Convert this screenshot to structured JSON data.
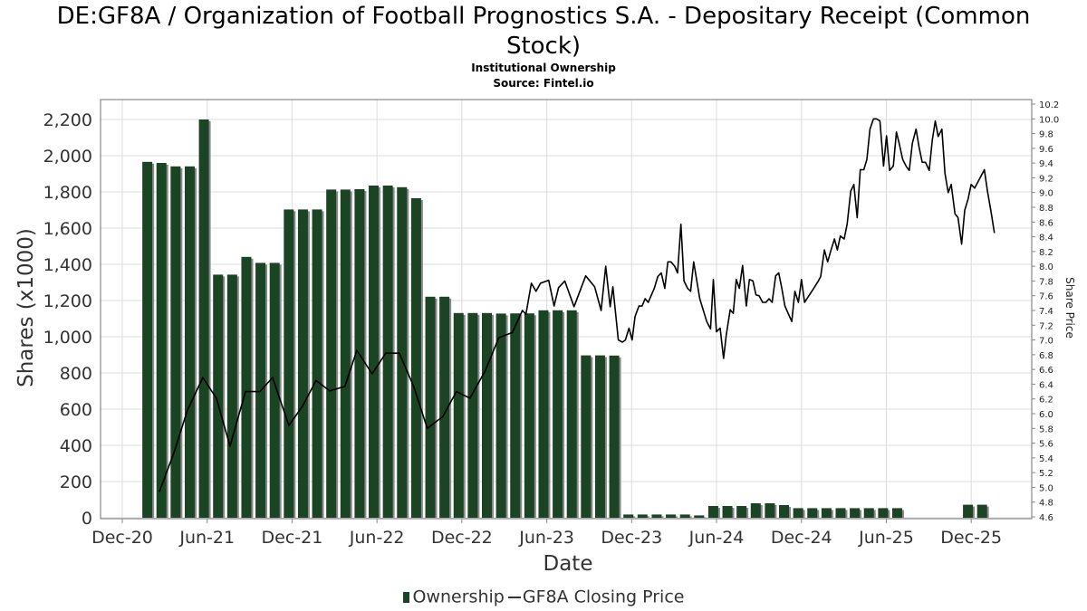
{
  "title_line1": "DE:GF8A / Organization of Football Prognostics S.A. - Depositary Receipt (Common",
  "title_line2": "Stock)",
  "subtitle": "Institutional Ownership",
  "source": "Source: Fintel.io",
  "chart_data": {
    "type": "bar+line",
    "title": "DE:GF8A / Organization of Football Prognostics S.A. - Depositary Receipt (Common Stock)",
    "xlabel": "Date",
    "ylabel": "Shares (x1000)",
    "y2label": "Share Price",
    "ylim": [
      0,
      2310
    ],
    "y2lim": [
      4.6,
      10.2
    ],
    "x_ticks": [
      "Dec-20",
      "Jun-21",
      "Dec-21",
      "Jun-22",
      "Dec-22",
      "Jun-23",
      "Dec-23",
      "Jun-24",
      "Dec-24",
      "Jun-25",
      "Dec-25"
    ],
    "y_ticks": [
      "0",
      "200",
      "400",
      "600",
      "800",
      "1,000",
      "1,200",
      "1,400",
      "1,600",
      "1,800",
      "2,000",
      "2,200"
    ],
    "y2_ticks": [
      "4.6",
      "4.8",
      "5.0",
      "5.2",
      "5.4",
      "5.6",
      "5.8",
      "6.0",
      "6.2",
      "6.4",
      "6.6",
      "6.8",
      "7.0",
      "7.2",
      "7.4",
      "7.6",
      "7.8",
      "8.0",
      "8.2",
      "8.4",
      "8.6",
      "8.8",
      "9.0",
      "9.2",
      "9.4",
      "9.6",
      "9.8",
      "10.0",
      "10.2"
    ],
    "grid": true,
    "legend_position": "bottom",
    "legend": [
      "Ownership",
      "GF8A Closing Price"
    ],
    "colors": {
      "bar": "#1a4424",
      "shadow": "#8a8a8a",
      "line": "#000000",
      "grid": "#dddddd"
    },
    "ownership": [
      [
        "2021-02",
        1966
      ],
      [
        "2021-03",
        1960
      ],
      [
        "2021-04",
        1941
      ],
      [
        "2021-05",
        1941
      ],
      [
        "2021-06",
        2200
      ],
      [
        "2021-07",
        1343
      ],
      [
        "2021-08",
        1343
      ],
      [
        "2021-09",
        1441
      ],
      [
        "2021-10",
        1408
      ],
      [
        "2021-11",
        1408
      ],
      [
        "2021-12",
        1703
      ],
      [
        "2022-01",
        1703
      ],
      [
        "2022-02",
        1703
      ],
      [
        "2022-03",
        1813
      ],
      [
        "2022-04",
        1813
      ],
      [
        "2022-05",
        1815
      ],
      [
        "2022-06",
        1835
      ],
      [
        "2022-07",
        1835
      ],
      [
        "2022-08",
        1826
      ],
      [
        "2022-09",
        1765
      ],
      [
        "2022-10",
        1221
      ],
      [
        "2022-11",
        1221
      ],
      [
        "2022-12",
        1131
      ],
      [
        "2023-01",
        1131
      ],
      [
        "2023-02",
        1131
      ],
      [
        "2023-03",
        1128
      ],
      [
        "2023-04",
        1129
      ],
      [
        "2023-05",
        1129
      ],
      [
        "2023-06",
        1146
      ],
      [
        "2023-07",
        1146
      ],
      [
        "2023-08",
        1146
      ],
      [
        "2023-09",
        897
      ],
      [
        "2023-10",
        897
      ],
      [
        "2023-11",
        896
      ],
      [
        "2023-12",
        18
      ],
      [
        "2024-01",
        18
      ],
      [
        "2024-02",
        18
      ],
      [
        "2024-03",
        18
      ],
      [
        "2024-04",
        18
      ],
      [
        "2024-05",
        13
      ],
      [
        "2024-06",
        65
      ],
      [
        "2024-07",
        65
      ],
      [
        "2024-08",
        65
      ],
      [
        "2024-09",
        80
      ],
      [
        "2024-10",
        80
      ],
      [
        "2024-11",
        70
      ],
      [
        "2024-12",
        53
      ],
      [
        "2025-01",
        53
      ],
      [
        "2025-02",
        53
      ],
      [
        "2025-03",
        53
      ],
      [
        "2025-04",
        53
      ],
      [
        "2025-05",
        53
      ],
      [
        "2025-06",
        53
      ],
      [
        "2025-07",
        53
      ],
      [
        "2025-12",
        72
      ],
      [
        "2026-01",
        72
      ]
    ],
    "price": [
      [
        2021.135,
        4.94
      ],
      [
        2021.221,
        5.47
      ],
      [
        2021.301,
        6.05
      ],
      [
        2021.391,
        6.49
      ],
      [
        2021.471,
        6.21
      ],
      [
        2021.551,
        5.56
      ],
      [
        2021.642,
        6.3
      ],
      [
        2021.727,
        6.3
      ],
      [
        2021.802,
        6.49
      ],
      [
        2021.898,
        5.84
      ],
      [
        2021.978,
        6.1
      ],
      [
        2022.058,
        6.45
      ],
      [
        2022.138,
        6.31
      ],
      [
        2022.228,
        6.37
      ],
      [
        2022.298,
        6.86
      ],
      [
        2022.388,
        6.54
      ],
      [
        2022.468,
        6.82
      ],
      [
        2022.548,
        6.82
      ],
      [
        2022.633,
        6.37
      ],
      [
        2022.713,
        5.8
      ],
      [
        2022.804,
        5.96
      ],
      [
        2022.884,
        6.3
      ],
      [
        2022.964,
        6.21
      ],
      [
        2023.054,
        6.58
      ],
      [
        2023.134,
        7.03
      ],
      [
        2023.214,
        7.1
      ],
      [
        2023.273,
        7.4
      ],
      [
        2023.294,
        7.35
      ],
      [
        2023.326,
        7.77
      ],
      [
        2023.353,
        7.66
      ],
      [
        2023.38,
        7.77
      ],
      [
        2023.428,
        7.81
      ],
      [
        2023.46,
        7.46
      ],
      [
        2023.486,
        7.71
      ],
      [
        2023.523,
        7.8
      ],
      [
        2023.577,
        7.45
      ],
      [
        2023.646,
        7.87
      ],
      [
        2023.699,
        7.72
      ],
      [
        2023.737,
        7.4
      ],
      [
        2023.764,
        8.0
      ],
      [
        2023.79,
        7.45
      ],
      [
        2023.806,
        7.72
      ],
      [
        2023.838,
        7.0
      ],
      [
        2023.862,
        6.97
      ],
      [
        2023.88,
        7.0
      ],
      [
        2023.901,
        7.16
      ],
      [
        2023.919,
        7.0
      ],
      [
        2023.937,
        7.32
      ],
      [
        2023.96,
        7.46
      ],
      [
        2023.978,
        7.46
      ],
      [
        2023.996,
        7.56
      ],
      [
        2024.014,
        7.51
      ],
      [
        2024.05,
        7.7
      ],
      [
        2024.071,
        7.86
      ],
      [
        2024.091,
        7.91
      ],
      [
        2024.112,
        7.7
      ],
      [
        2024.13,
        8.06
      ],
      [
        2024.148,
        8.06
      ],
      [
        2024.17,
        8.0
      ],
      [
        2024.187,
        7.91
      ],
      [
        2024.207,
        8.57
      ],
      [
        2024.225,
        7.8
      ],
      [
        2024.246,
        7.7
      ],
      [
        2024.264,
        7.66
      ],
      [
        2024.282,
        8.06
      ],
      [
        2024.318,
        7.56
      ],
      [
        2024.359,
        7.25
      ],
      [
        2024.381,
        7.15
      ],
      [
        2024.398,
        7.82
      ],
      [
        2024.416,
        7.11
      ],
      [
        2024.438,
        7.16
      ],
      [
        2024.458,
        6.75
      ],
      [
        2024.474,
        7.07
      ],
      [
        2024.497,
        7.41
      ],
      [
        2024.515,
        7.36
      ],
      [
        2024.533,
        7.82
      ],
      [
        2024.551,
        7.7
      ],
      [
        2024.57,
        8.01
      ],
      [
        2024.592,
        7.46
      ],
      [
        2024.61,
        7.82
      ],
      [
        2024.631,
        7.8
      ],
      [
        2024.649,
        7.61
      ],
      [
        2024.667,
        7.6
      ],
      [
        2024.688,
        7.51
      ],
      [
        2024.708,
        7.51
      ],
      [
        2024.726,
        7.56
      ],
      [
        2024.744,
        7.51
      ],
      [
        2024.765,
        7.87
      ],
      [
        2024.783,
        7.91
      ],
      [
        2024.801,
        7.7
      ],
      [
        2024.819,
        7.46
      ],
      [
        2024.86,
        7.25
      ],
      [
        2024.878,
        7.66
      ],
      [
        2024.899,
        7.51
      ],
      [
        2024.917,
        7.82
      ],
      [
        2024.935,
        7.51
      ],
      [
        2024.989,
        7.7
      ],
      [
        2025.016,
        7.8
      ],
      [
        2025.03,
        7.86
      ],
      [
        2025.052,
        8.22
      ],
      [
        2025.071,
        8.06
      ],
      [
        2025.091,
        8.22
      ],
      [
        2025.111,
        8.37
      ],
      [
        2025.128,
        8.22
      ],
      [
        2025.146,
        8.41
      ],
      [
        2025.168,
        8.37
      ],
      [
        2025.186,
        8.57
      ],
      [
        2025.207,
        9.02
      ],
      [
        2025.225,
        9.11
      ],
      [
        2025.245,
        8.66
      ],
      [
        2025.263,
        9.31
      ],
      [
        2025.284,
        9.31
      ],
      [
        2025.302,
        9.45
      ],
      [
        2025.32,
        9.86
      ],
      [
        2025.341,
        10.0
      ],
      [
        2025.359,
        10.0
      ],
      [
        2025.379,
        9.97
      ],
      [
        2025.4,
        9.36
      ],
      [
        2025.418,
        9.77
      ],
      [
        2025.436,
        9.3
      ],
      [
        2025.458,
        9.36
      ],
      [
        2025.476,
        9.82
      ],
      [
        2025.493,
        9.66
      ],
      [
        2025.513,
        9.45
      ],
      [
        2025.535,
        9.35
      ],
      [
        2025.552,
        9.3
      ],
      [
        2025.57,
        9.67
      ],
      [
        2025.592,
        9.86
      ],
      [
        2025.61,
        9.61
      ],
      [
        2025.628,
        9.41
      ],
      [
        2025.647,
        9.41
      ],
      [
        2025.669,
        9.3
      ],
      [
        2025.687,
        9.71
      ],
      [
        2025.705,
        9.97
      ],
      [
        2025.722,
        9.76
      ],
      [
        2025.744,
        9.86
      ],
      [
        2025.762,
        9.26
      ],
      [
        2025.781,
        9.0
      ],
      [
        2025.799,
        9.11
      ],
      [
        2025.821,
        8.71
      ],
      [
        2025.839,
        8.66
      ],
      [
        2025.86,
        8.3
      ],
      [
        2025.878,
        8.76
      ],
      [
        2025.898,
        8.91
      ],
      [
        2025.916,
        9.11
      ],
      [
        2025.937,
        9.06
      ],
      [
        2025.994,
        9.31
      ],
      [
        2026.012,
        9.02
      ],
      [
        2026.032,
        8.76
      ],
      [
        2026.053,
        8.45
      ]
    ]
  }
}
